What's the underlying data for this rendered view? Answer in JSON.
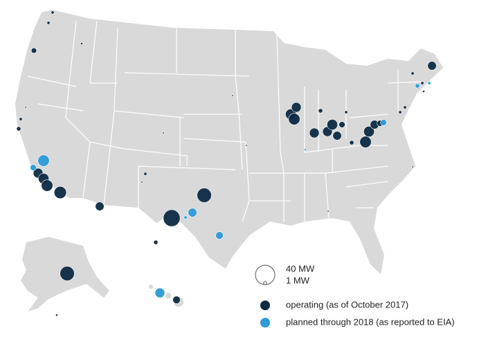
{
  "size_legend": [
    {
      "label": "40 MW",
      "mw": 40
    },
    {
      "label": "1 MW",
      "mw": 1
    }
  ],
  "status_legend": [
    {
      "label": "operating (as of October 2017)",
      "color": "#0d2b45",
      "sites_mw": [
        1,
        1,
        3,
        0.5,
        0.3,
        1,
        2,
        10,
        12,
        14,
        16,
        8,
        1,
        0.3,
        0.3,
        22,
        30,
        2,
        6,
        22,
        0.5,
        0.3,
        0.3,
        12,
        10,
        14,
        10,
        10,
        12,
        8,
        4,
        2,
        14,
        12,
        8,
        4,
        1,
        1,
        1,
        0.5,
        1,
        8,
        2,
        1,
        0.3,
        0.3
      ]
    },
    {
      "label": "planned through 2018 (as reported to EIA)",
      "color": "#2b9bd8",
      "sites_mw": [
        14,
        4,
        8,
        1,
        6,
        10,
        4,
        2,
        0.5,
        1
      ]
    }
  ]
}
